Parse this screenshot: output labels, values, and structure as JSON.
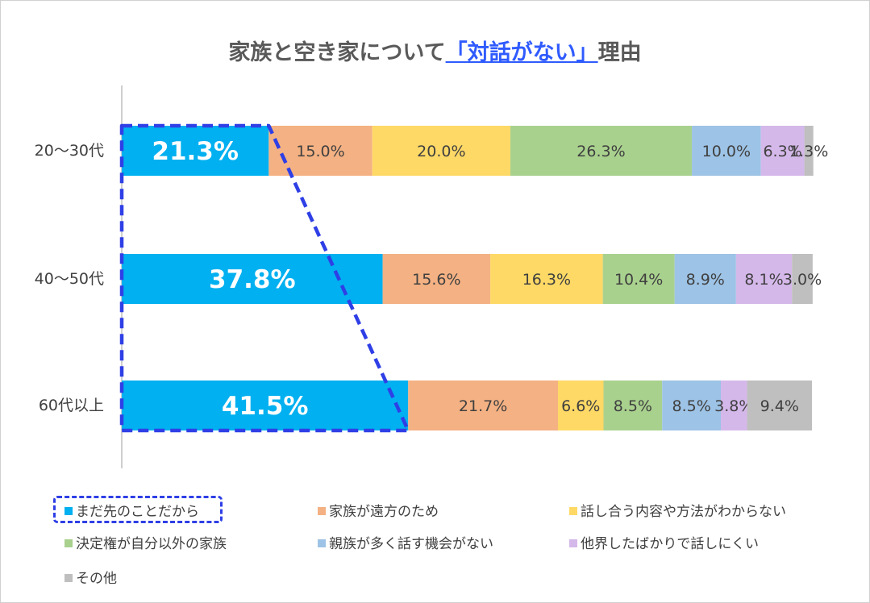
{
  "title": {
    "prefix": "家族と空き家について",
    "emphasis": "「対話がない」",
    "suffix": "理由"
  },
  "chart_data": {
    "type": "bar",
    "orientation": "horizontal",
    "stacked": "percent",
    "categories": [
      "20～30代",
      "40～50代",
      "60代以上"
    ],
    "series": [
      {
        "name": "まだ先のことだから",
        "color": "#00b0f0",
        "values": [
          21.3,
          37.8,
          41.5
        ]
      },
      {
        "name": "家族が遠方のため",
        "color": "#f4b183",
        "values": [
          15.0,
          15.6,
          21.7
        ]
      },
      {
        "name": "話し合う内容や方法がわからない",
        "color": "#ffd966",
        "values": [
          20.0,
          16.3,
          6.6
        ]
      },
      {
        "name": "決定権が自分以外の家族",
        "color": "#a9d18e",
        "values": [
          26.3,
          10.4,
          8.5
        ]
      },
      {
        "name": "親族が多く話す機会がない",
        "color": "#9dc3e6",
        "values": [
          10.0,
          8.9,
          8.5
        ]
      },
      {
        "name": "他界したばかりで話しにくい",
        "color": "#d5b8ea",
        "values": [
          6.3,
          8.1,
          3.8
        ]
      },
      {
        "name": "その他",
        "color": "#bfbfbf",
        "values": [
          1.3,
          3.0,
          9.4
        ]
      }
    ],
    "data_labels": [
      [
        "21.3%",
        "15.0%",
        "20.0%",
        "26.3%",
        "10.0%",
        "6.3%",
        "1.3%"
      ],
      [
        "37.8%",
        "15.6%",
        "16.3%",
        "10.4%",
        "8.9%",
        "8.1%",
        "3.0%"
      ],
      [
        "41.5%",
        "21.7%",
        "6.6%",
        "8.5%",
        "8.5%",
        "3.8%",
        "9.4%"
      ]
    ],
    "xlim": [
      0,
      100
    ],
    "legend_position": "bottom",
    "highlight_series": "まだ先のことだから",
    "highlight_color": "#2f3fe6"
  }
}
